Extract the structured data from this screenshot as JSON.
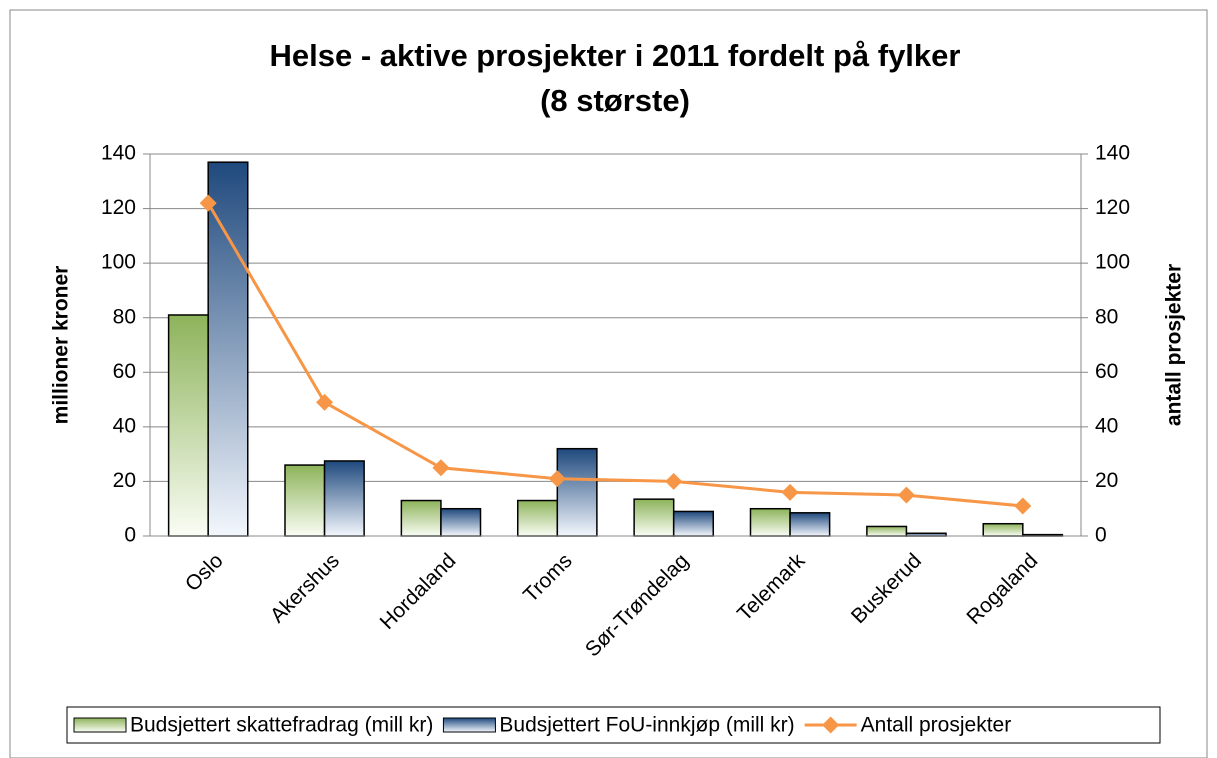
{
  "chart_data": {
    "type": "bar_line",
    "title": "Helse - aktive prosjekter i 2011 fordelt på fylker",
    "subtitle": "(8 største)",
    "ylabel": "millioner kroner",
    "y2label": "antall prosjekter",
    "categories": [
      "Oslo",
      "Akershus",
      "Hordaland",
      "Troms",
      "Sør-Trøndelag",
      "Telemark",
      "Buskerud",
      "Rogaland"
    ],
    "series": [
      {
        "name": "Budsjettert skattefradrag (mill kr)",
        "type": "bar",
        "color": "#8db35a",
        "values": [
          81,
          26,
          13,
          13,
          13.5,
          10,
          3.5,
          4.5
        ]
      },
      {
        "name": "Budsjettert FoU-innkjøp (mill kr)",
        "type": "bar",
        "color": "#1f497d",
        "values": [
          137,
          27.5,
          10,
          32,
          9,
          8.5,
          1,
          0.5
        ]
      },
      {
        "name": "Antall prosjekter",
        "type": "line",
        "axis": "y2",
        "color": "#f79646",
        "values": [
          122,
          49,
          25,
          21,
          20,
          16,
          15,
          11
        ]
      }
    ],
    "ylim": [
      0,
      140
    ],
    "yticks": [
      0,
      20,
      40,
      60,
      80,
      100,
      120,
      140
    ],
    "y2lim": [
      0,
      140
    ],
    "y2ticks": [
      0,
      20,
      40,
      60,
      80,
      100,
      120,
      140
    ],
    "grid": true,
    "legend": "bottom"
  }
}
